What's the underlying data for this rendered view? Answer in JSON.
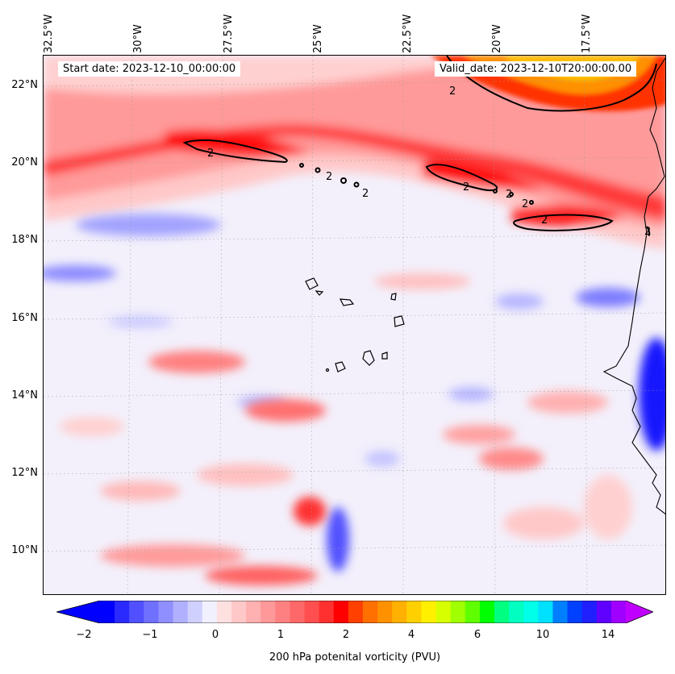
{
  "map": {
    "start_date": "Start date: 2023-12-10_00:00:00",
    "valid_date": "Valid_date: 2023-12-10T20:00:00.00",
    "lon_labels": [
      "32.5°W",
      "30°W",
      "27.5°W",
      "25°W",
      "22.5°W",
      "20°W",
      "17.5°W"
    ],
    "lat_labels": [
      "22°N",
      "20°N",
      "18°N",
      "16°N",
      "14°N",
      "12°N",
      "10°N"
    ],
    "contour_label": "2",
    "colors": {
      "positive_strong": "#ff1a1a",
      "positive_mid": "#ff8080",
      "positive_light": "#ffd6d6",
      "neutral": "#f2f0ff",
      "negative_light": "#c8c8ff",
      "negative_strong": "#1a1aff",
      "high": "#ffc000"
    }
  },
  "colorbar": {
    "title": "200 hPa potenital vorticity (PVU)",
    "tick_labels": [
      "−2",
      "−1",
      "0",
      "1",
      "2",
      "4",
      "6",
      "10",
      "14"
    ],
    "colors": [
      "#0000ff",
      "#2a2aff",
      "#5050ff",
      "#7070ff",
      "#8f8fff",
      "#b0b0ff",
      "#d0d0ff",
      "#f0f0ff",
      "#ffe0e0",
      "#ffc8c8",
      "#ffb0b0",
      "#ff9898",
      "#ff8080",
      "#ff6868",
      "#ff4f4f",
      "#ff3030",
      "#ff0000",
      "#ff4000",
      "#ff7000",
      "#ff9000",
      "#ffb000",
      "#ffd000",
      "#fff000",
      "#d8ff00",
      "#a0ff00",
      "#60ff00",
      "#00ff00",
      "#00ff80",
      "#00ffc0",
      "#00ffe8",
      "#00e0ff",
      "#0080ff",
      "#0040ff",
      "#2020ff",
      "#6000ff",
      "#a000ff"
    ],
    "extend_low": "#0000ff",
    "extend_high": "#c000ff"
  }
}
